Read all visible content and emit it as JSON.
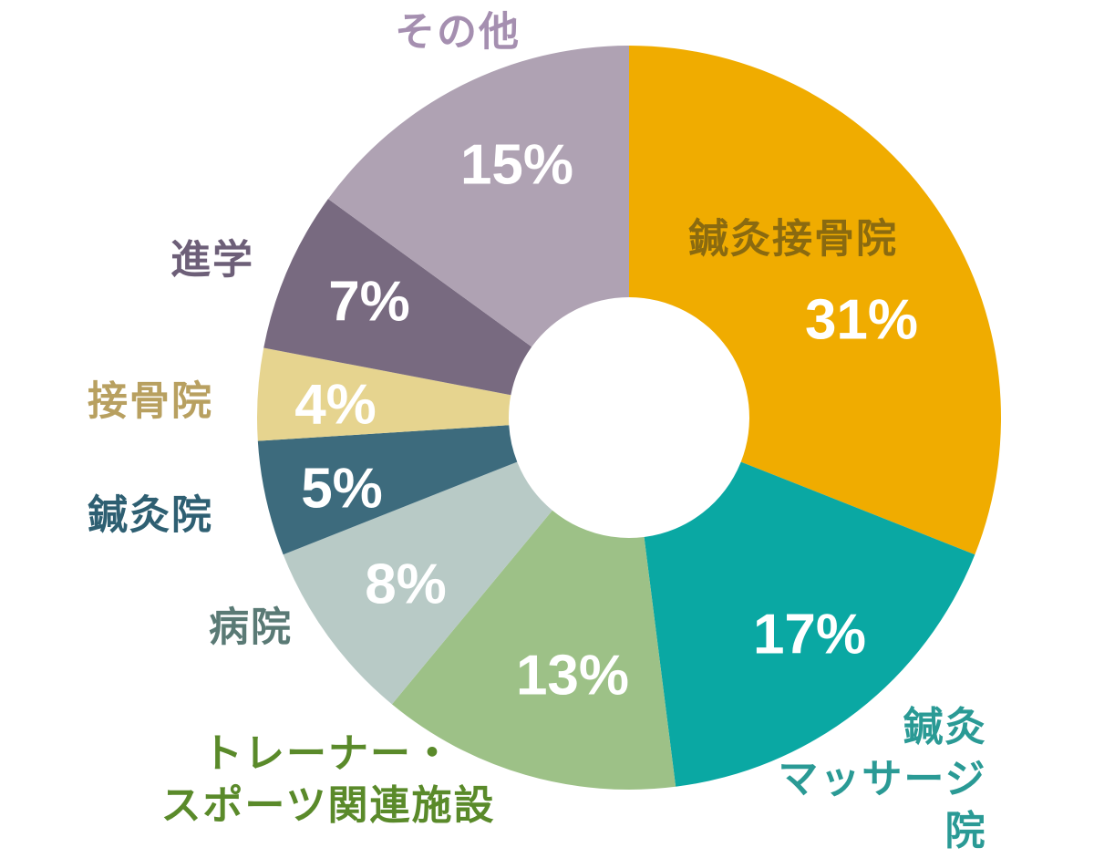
{
  "chart_data": {
    "type": "donut",
    "categories": [
      "鍼灸接骨院",
      "鍼灸\nマッサージ院",
      "トレーナー・\nスポーツ関連施設",
      "病院",
      "鍼灸院",
      "接骨院",
      "進学",
      "その他"
    ],
    "values": [
      31,
      17,
      13,
      8,
      5,
      4,
      7,
      15
    ],
    "value_labels": [
      "31%",
      "17%",
      "13%",
      "8%",
      "5%",
      "4%",
      "7%",
      "15%"
    ],
    "colors": [
      "#f0ac00",
      "#0aa8a3",
      "#9dc187",
      "#b8cac6",
      "#3d6b7d",
      "#e6d48f",
      "#786a80",
      "#afa2b3"
    ]
  }
}
